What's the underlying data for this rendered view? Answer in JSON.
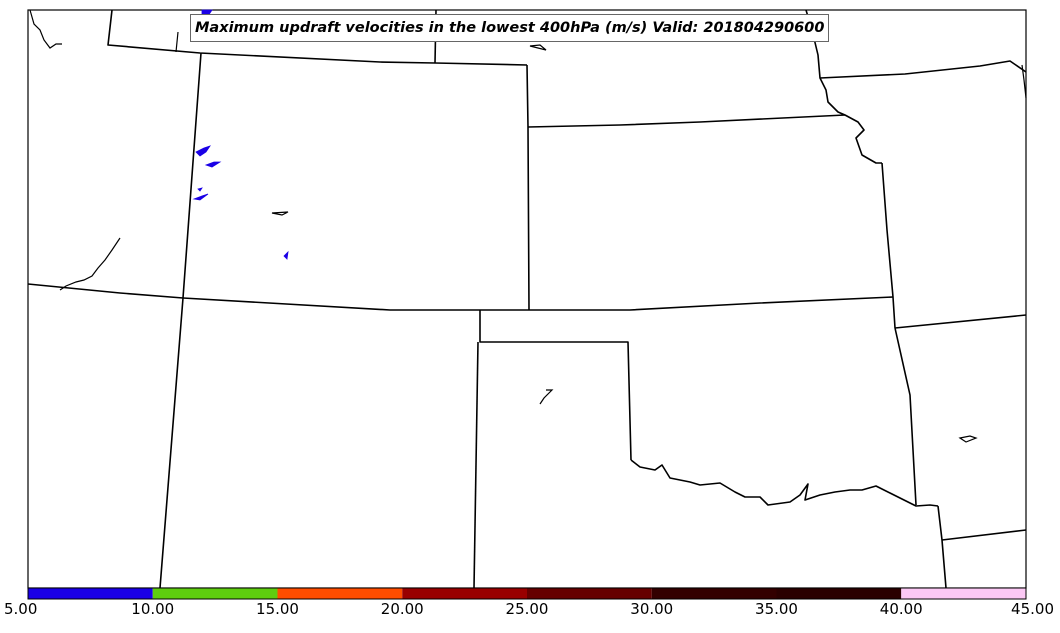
{
  "title": "Maximum updraft velocities in the lowest 400hPa (m/s) Valid: 201804290600",
  "colorbar": {
    "ticks": [
      "5.00",
      "10.00",
      "15.00",
      "20.00",
      "25.00",
      "30.00",
      "35.00",
      "40.00",
      "45.00"
    ],
    "colors": [
      "#1a00e6",
      "#5ecd0f",
      "#ff4d00",
      "#990000",
      "#660000",
      "#330000",
      "#2a0000",
      "#fcc8f5",
      "#ffe8fb"
    ]
  },
  "field_color": "#1a00e6"
}
